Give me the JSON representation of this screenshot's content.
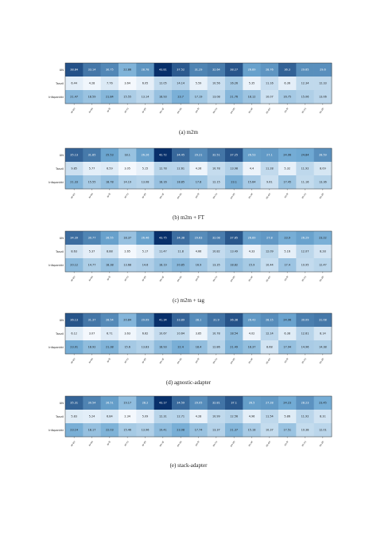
{
  "chart_data": [
    {
      "type": "heatmap",
      "caption": "(a)  m2m",
      "rows": [
        "UN",
        "Tanzil",
        "Infopankki"
      ],
      "columns": [
        "ar-en",
        "ar-es",
        "ar-fr",
        "ar-ru",
        "ar-zh",
        "en-ar",
        "en-es",
        "en-fr",
        "en-ru",
        "en-zh",
        "es-ar",
        "es-en",
        "es-fr",
        "es-ru",
        "es-zh"
      ],
      "values": [
        [
          38.84,
          33.14,
          30.75,
          22.86,
          28.78,
          43.81,
          37.52,
          31.29,
          32.64,
          38.27,
          26.89,
          28.76,
          36.3,
          29.65,
          29.6
        ],
        [
          6.44,
          4.28,
          7.76,
          3.64,
          6.05,
          12.05,
          14.14,
          5.59,
          10.56,
          16.26,
          5.35,
          11.16,
          6.36,
          12.34,
          12.33
        ],
        [
          21.47,
          18.59,
          21.84,
          15.55,
          13.14,
          18.93,
          23.7,
          17.19,
          13.08,
          21.76,
          18.12,
          10.07,
          16.75,
          15.06,
          13.06
        ]
      ]
    },
    {
      "type": "heatmap",
      "caption": "(b)  m2m + FT",
      "rows": [
        "UN",
        "Tanzil",
        "Infopankki"
      ],
      "columns": [
        "ar-en",
        "ar-es",
        "ar-fr",
        "ar-ru",
        "ar-zh",
        "en-ar",
        "en-es",
        "en-fr",
        "en-ru",
        "en-zh",
        "es-ar",
        "es-en",
        "es-fr",
        "es-ru",
        "es-zh"
      ],
      "values": [
        [
          35.13,
          31.85,
          25.53,
          18.1,
          26.26,
          42.72,
          34.45,
          29.21,
          32.51,
          37.25,
          26.53,
          27.1,
          24.06,
          24.84,
          28.59
        ],
        [
          9.85,
          5.77,
          6.59,
          3.05,
          5.15,
          12.78,
          12.61,
          4.26,
          10.78,
          13.98,
          4.4,
          11.28,
          5.32,
          11.92,
          8.09
        ],
        [
          21.33,
          15.55,
          18.78,
          14.19,
          13.08,
          18.16,
          18.85,
          17.8,
          12.15,
          23.1,
          15.64,
          9.61,
          17.45,
          11.16,
          13.36
        ]
      ]
    },
    {
      "type": "heatmap",
      "caption": "(c)  m2m + tag",
      "rows": [
        "UN",
        "Tanzil",
        "Infopankki"
      ],
      "columns": [
        "ar-en",
        "ar-es",
        "ar-fr",
        "ar-ru",
        "ar-zh",
        "en-ar",
        "en-es",
        "en-fr",
        "en-ru",
        "en-zh",
        "es-ar",
        "es-en",
        "es-fr",
        "es-ru",
        "es-zh"
      ],
      "values": [
        [
          34.39,
          30.77,
          26.55,
          18.37,
          26.46,
          43.75,
          34.38,
          29.63,
          32.08,
          37.85,
          26.89,
          27.8,
          23.9,
          26.29,
          23.22
        ],
        [
          8.63,
          5.37,
          8.88,
          2.65,
          5.17,
          11.47,
          11.8,
          4.66,
          10.82,
          13.49,
          4.33,
          12.09,
          5.16,
          12.07,
          8.28
        ],
        [
          20.12,
          14.77,
          18.38,
          13.68,
          14.6,
          18.19,
          20.85,
          16.9,
          13.35,
          18.82,
          15.9,
          10.44,
          17.4,
          10.95,
          12.47
        ]
      ]
    },
    {
      "type": "heatmap",
      "caption": "(d)  agnostic-adapter",
      "rows": [
        "UN",
        "Tanzil",
        "Infopankki"
      ],
      "columns": [
        "ar-en",
        "ar-es",
        "ar-fr",
        "ar-ru",
        "ar-zh",
        "en-ar",
        "en-es",
        "en-fr",
        "en-ru",
        "en-zh",
        "es-ar",
        "es-en",
        "es-fr",
        "es-ru",
        "es-zh"
      ],
      "values": [
        [
          36.13,
          31.37,
          28.54,
          20.84,
          29.09,
          41.34,
          33.89,
          28.1,
          31.9,
          36.38,
          26.43,
          28.15,
          24.96,
          30.09,
          31.08
        ],
        [
          6.12,
          3.07,
          6.71,
          3.63,
          6.62,
          10.67,
          10.64,
          3.85,
          10.78,
          18.54,
          4.02,
          12.14,
          6.38,
          12.61,
          8.14
        ],
        [
          23.01,
          18.92,
          21.38,
          15.6,
          13.83,
          18.93,
          22.4,
          18.4,
          12.86,
          21.49,
          18.37,
          8.68,
          17.94,
          14.96,
          14.38
        ]
      ]
    },
    {
      "type": "heatmap",
      "caption": "(e)  stack-adapter",
      "rows": [
        "UN",
        "Tanzil",
        "Infopankki"
      ],
      "columns": [
        "ar-en",
        "ar-es",
        "ar-fr",
        "ar-ru",
        "ar-zh",
        "en-ar",
        "en-es",
        "en-fr",
        "en-ru",
        "en-zh",
        "es-ar",
        "es-en",
        "es-fr",
        "es-ru",
        "es-zh"
      ],
      "values": [
        [
          35.31,
          30.54,
          26.51,
          19.17,
          28.2,
          43.17,
          34.59,
          29.05,
          32.81,
          37.1,
          26.5,
          27.28,
          24.23,
          28.23,
          23.45
        ],
        [
          5.83,
          5.24,
          6.84,
          2.34,
          5.09,
          12.31,
          12.71,
          4.28,
          10.99,
          12.56,
          4.96,
          11.54,
          5.86,
          11.92,
          8.31
        ],
        [
          23.14,
          18.17,
          22.03,
          15.46,
          13.96,
          19.41,
          23.08,
          17.74,
          13.37,
          21.37,
          15.18,
          10.37,
          17.51,
          10.38,
          12.01
        ]
      ]
    }
  ],
  "colors": {
    "low": "#f4f8fd",
    "mid": "#6fa9d3",
    "high": "#08306b",
    "border": "#333333"
  }
}
